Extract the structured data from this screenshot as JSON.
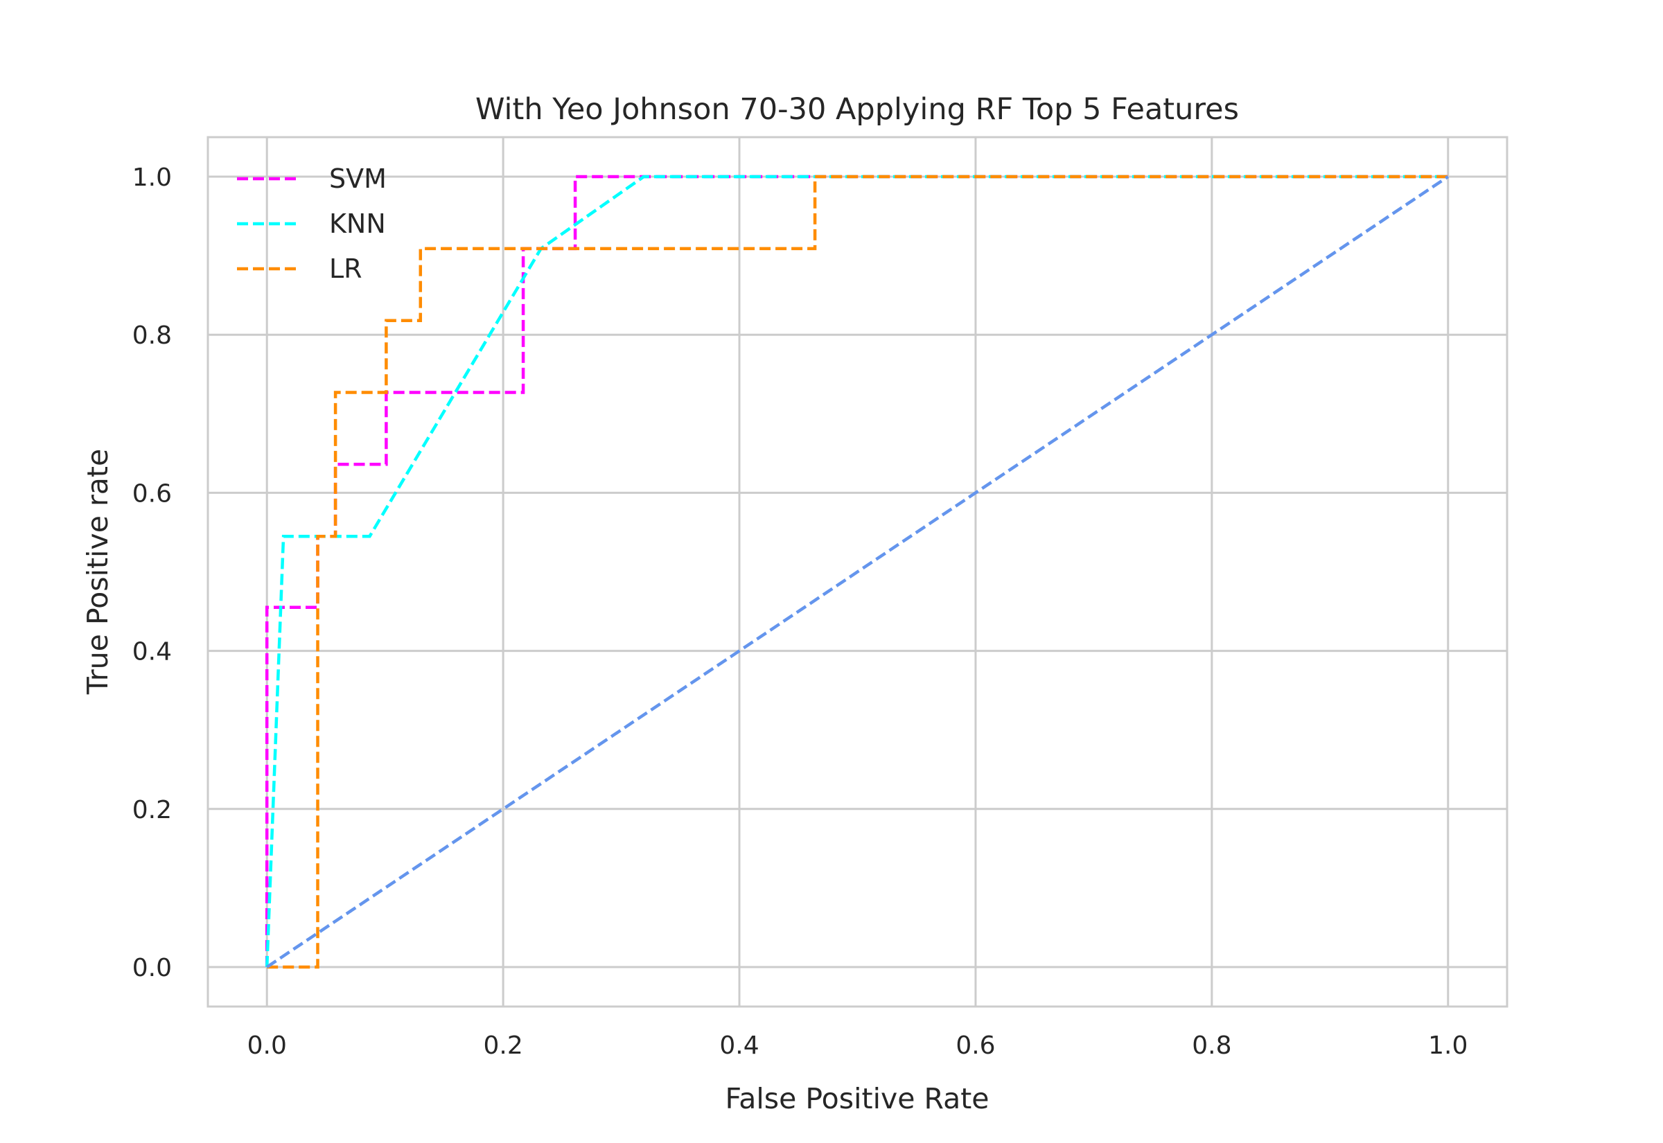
{
  "chart_data": {
    "type": "line",
    "title": "With Yeo Johnson 70-30 Applying RF Top 5 Features",
    "xlabel": "False Positive Rate",
    "ylabel": "True Positive rate",
    "xlim": [
      -0.05,
      1.05
    ],
    "ylim": [
      -0.05,
      1.05
    ],
    "xticks": [
      0.0,
      0.2,
      0.4,
      0.6,
      0.8,
      1.0
    ],
    "yticks": [
      0.0,
      0.2,
      0.4,
      0.6,
      0.8,
      1.0
    ],
    "xtick_labels": [
      "0.0",
      "0.2",
      "0.4",
      "0.6",
      "0.8",
      "1.0"
    ],
    "ytick_labels": [
      "0.0",
      "0.2",
      "0.4",
      "0.6",
      "0.8",
      "1.0"
    ],
    "grid": true,
    "legend_position": "top-left",
    "series": [
      {
        "name": "SVM",
        "color": "#ff00ff",
        "style": "dashed",
        "x": [
          0.0,
          0.0,
          0.043,
          0.043,
          0.058,
          0.058,
          0.101,
          0.101,
          0.217,
          0.217,
          0.261,
          0.261,
          1.0
        ],
        "y": [
          0.0,
          0.455,
          0.455,
          0.545,
          0.545,
          0.636,
          0.636,
          0.727,
          0.727,
          0.909,
          0.909,
          1.0,
          1.0
        ]
      },
      {
        "name": "KNN",
        "color": "#00ffff",
        "style": "dashed",
        "x": [
          0.0,
          0.014,
          0.087,
          0.232,
          0.319,
          1.0
        ],
        "y": [
          0.0,
          0.545,
          0.545,
          0.909,
          1.0,
          1.0
        ]
      },
      {
        "name": "LR",
        "color": "#ff8c00",
        "style": "dashed",
        "x": [
          0.0,
          0.043,
          0.043,
          0.058,
          0.058,
          0.101,
          0.101,
          0.13,
          0.13,
          0.464,
          0.464,
          1.0
        ],
        "y": [
          0.0,
          0.0,
          0.545,
          0.545,
          0.727,
          0.727,
          0.818,
          0.818,
          0.909,
          0.909,
          1.0,
          1.0
        ]
      },
      {
        "color": "#6495ed",
        "style": "dashed",
        "x": [
          0.0,
          1.0
        ],
        "y": [
          0.0,
          1.0
        ]
      }
    ]
  }
}
